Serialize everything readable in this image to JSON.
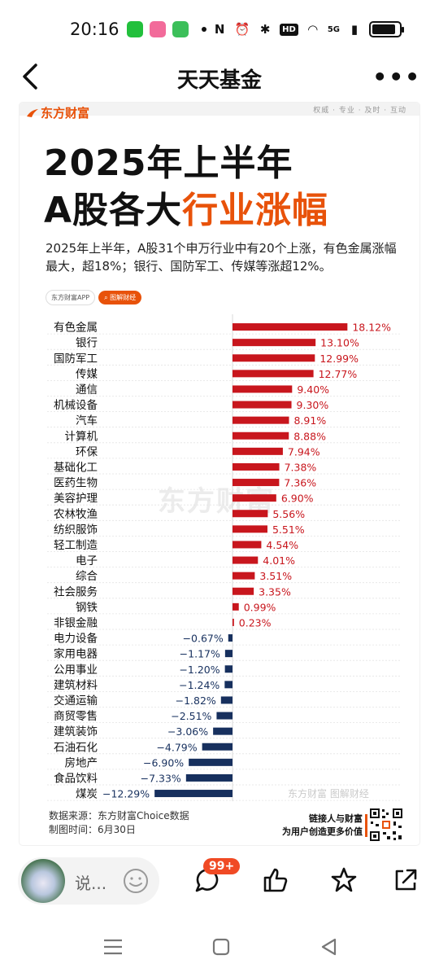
{
  "status_bar": {
    "time": "20:16",
    "network": "5G",
    "hd": "HD"
  },
  "nav": {
    "title": "天天基金"
  },
  "card": {
    "brand": "东方财富",
    "slogan": "权威 · 专业 · 及时 · 互动",
    "headline_line1": "2025年上半年",
    "headline_line2_plain": "A股各大",
    "headline_line2_highlight": "行业涨幅",
    "subtitle": "2025年上半年，A股31个申万行业中有20个上涨，有色金属涨幅最大，超18%；银行、国防军工、传媒等涨超12%。",
    "tag_app": "东方财富APP",
    "tag_column": "图解财经",
    "watermark_main": "东方财富",
    "watermark_footer": "东方财富 图解财经",
    "source_line1": "数据来源：东方财富Choice数据",
    "source_line2": "制图时间：6月30日",
    "footer_line1": "链接人与财富",
    "footer_line2": "为用户创造更多价值"
  },
  "chart_data": {
    "type": "bar",
    "orientation": "horizontal",
    "categories": [
      "有色金属",
      "银行",
      "国防军工",
      "传媒",
      "通信",
      "机械设备",
      "汽车",
      "计算机",
      "环保",
      "基础化工",
      "医药生物",
      "美容护理",
      "农林牧渔",
      "纺织服饰",
      "轻工制造",
      "电子",
      "综合",
      "社会服务",
      "钢铁",
      "非银金融",
      "电力设备",
      "家用电器",
      "公用事业",
      "建筑材料",
      "交通运输",
      "商贸零售",
      "建筑装饰",
      "石油石化",
      "房地产",
      "食品饮料",
      "煤炭"
    ],
    "values": [
      18.12,
      13.1,
      12.99,
      12.77,
      9.4,
      9.3,
      8.91,
      8.88,
      7.94,
      7.38,
      7.36,
      6.9,
      5.56,
      5.51,
      4.54,
      4.01,
      3.51,
      3.35,
      0.99,
      0.23,
      -0.67,
      -1.17,
      -1.2,
      -1.24,
      -1.82,
      -2.51,
      -3.06,
      -4.79,
      -6.9,
      -7.33,
      -12.29
    ],
    "value_labels": [
      "18.12%",
      "13.10%",
      "12.99%",
      "12.77%",
      "9.40%",
      "9.30%",
      "8.91%",
      "8.88%",
      "7.94%",
      "7.38%",
      "7.36%",
      "6.90%",
      "5.56%",
      "5.51%",
      "4.54%",
      "4.01%",
      "3.51%",
      "3.35%",
      "0.99%",
      "0.23%",
      "−0.67%",
      "−1.17%",
      "−1.20%",
      "−1.24%",
      "−1.82%",
      "−2.51%",
      "−3.06%",
      "−4.79%",
      "−6.90%",
      "−7.33%",
      "−12.29%"
    ],
    "unit": "%",
    "xlim": [
      -13,
      19
    ],
    "positive_color": "#c8161d",
    "negative_color": "#17305e",
    "grid": "horizontal dashed row separators",
    "legend": "none"
  },
  "action_bar": {
    "comment_placeholder": "说...",
    "comment_badge": "99+"
  },
  "colors": {
    "accent": "#e8520a",
    "badge": "#f04a24"
  }
}
